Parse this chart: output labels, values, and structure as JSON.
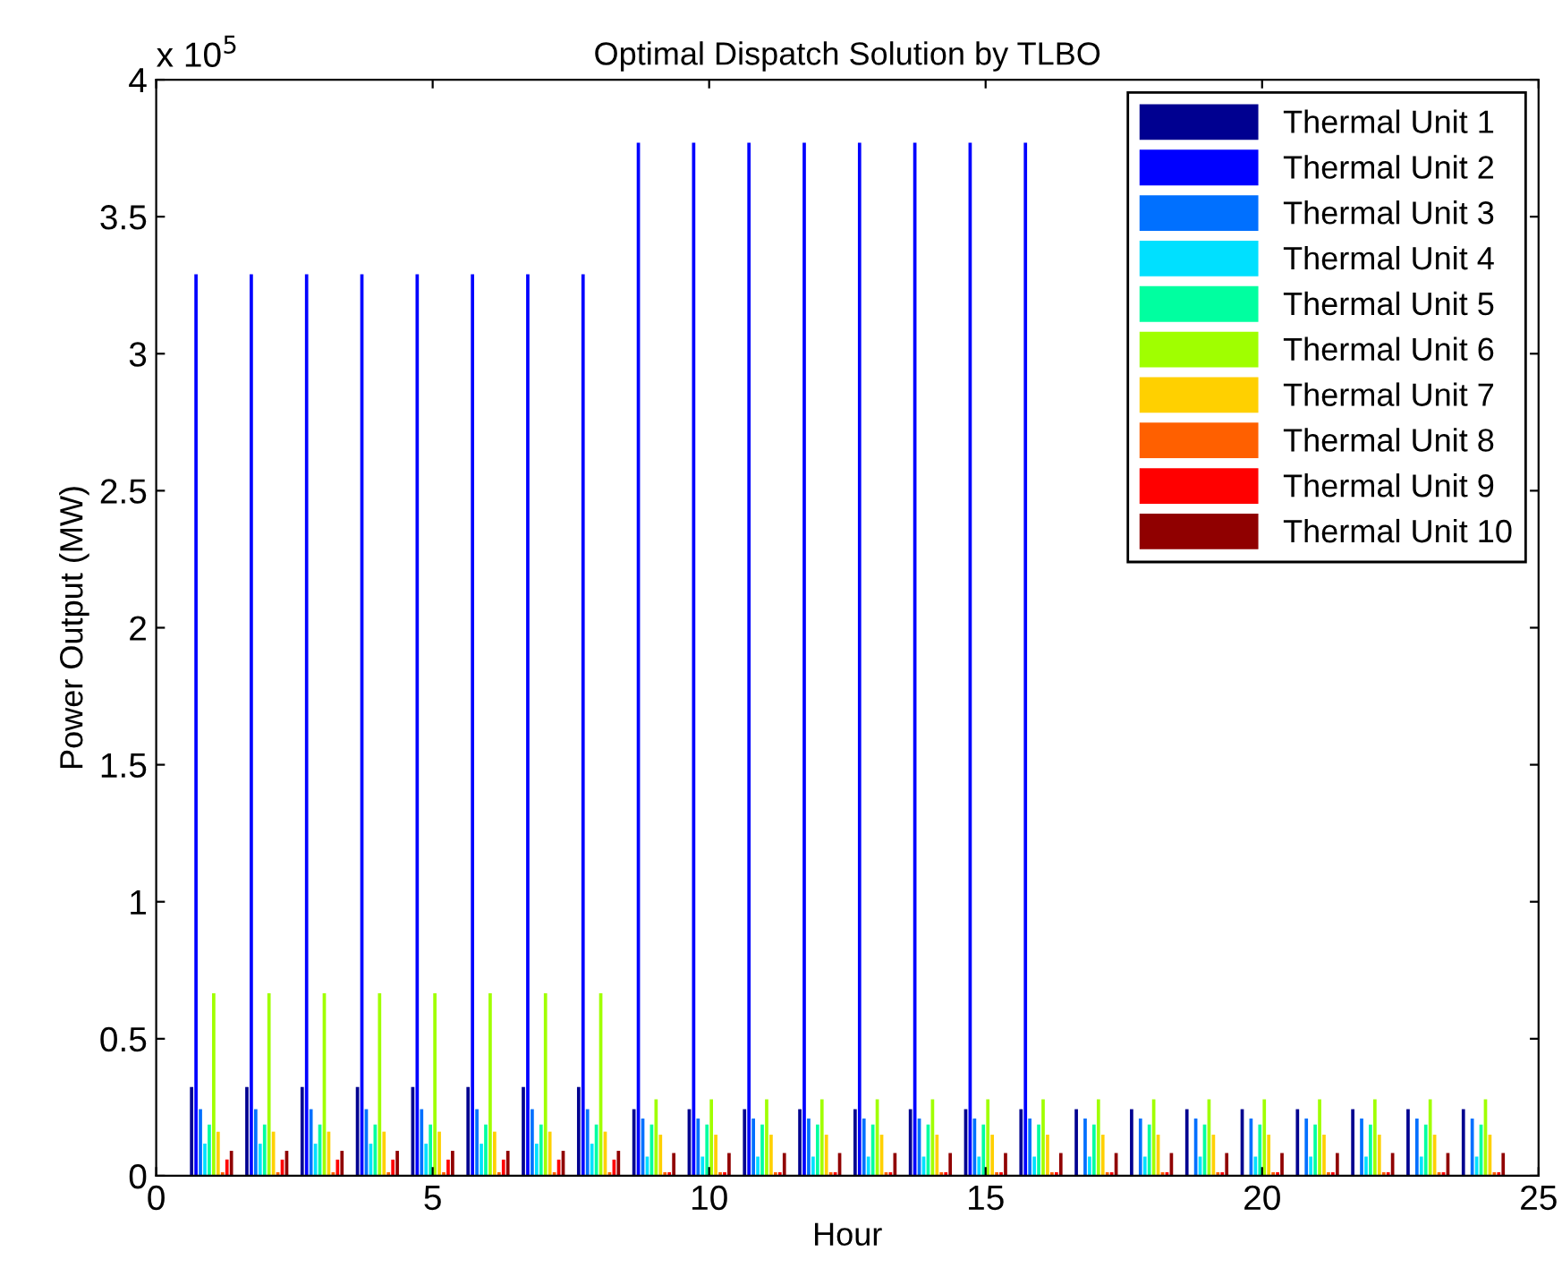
{
  "chart_data": {
    "type": "bar",
    "title": "Optimal Dispatch Solution by TLBO",
    "xlabel": "Hour",
    "ylabel": "Power Output (MW)",
    "annotations": [
      "x 10$^{5}$"
    ],
    "x": [
      1,
      2,
      3,
      4,
      5,
      6,
      7,
      8,
      9,
      10,
      11,
      12,
      13,
      14,
      15,
      16,
      17,
      18,
      19,
      20,
      21,
      22,
      23,
      24
    ],
    "xlim": [
      0,
      25
    ],
    "xticks": [
      0,
      5,
      10,
      15,
      20,
      25
    ],
    "ylim": [
      0,
      4
    ],
    "yticks": [
      0,
      0.5,
      1,
      1.5,
      2,
      2.5,
      3,
      3.5,
      4
    ],
    "grid": false,
    "legend": "top right",
    "series": [
      {
        "name": "Thermal Unit 1",
        "color": "#000090",
        "values": [
          0.324,
          0.324,
          0.324,
          0.324,
          0.324,
          0.324,
          0.324,
          0.324,
          0.243,
          0.243,
          0.243,
          0.243,
          0.243,
          0.243,
          0.243,
          0.243,
          0.243,
          0.243,
          0.243,
          0.243,
          0.243,
          0.243,
          0.243,
          0.243
        ]
      },
      {
        "name": "Thermal Unit 2",
        "color": "#0000ff",
        "values": [
          3.29,
          3.29,
          3.29,
          3.29,
          3.29,
          3.29,
          3.29,
          3.29,
          3.77,
          3.77,
          3.77,
          3.77,
          3.77,
          3.77,
          3.77,
          3.77,
          null,
          null,
          null,
          null,
          null,
          null,
          null,
          null
        ]
      },
      {
        "name": "Thermal Unit 3",
        "color": "#0070ff",
        "values": [
          0.243,
          0.243,
          0.243,
          0.243,
          0.243,
          0.243,
          0.243,
          0.243,
          0.209,
          0.209,
          0.209,
          0.209,
          0.209,
          0.209,
          0.209,
          0.209,
          0.209,
          0.209,
          0.209,
          0.209,
          0.209,
          0.209,
          0.209,
          0.209
        ]
      },
      {
        "name": "Thermal Unit 4",
        "color": "#00e0ff",
        "values": [
          0.117,
          0.117,
          0.117,
          0.117,
          0.117,
          0.117,
          0.117,
          0.117,
          0.07,
          0.07,
          0.07,
          0.07,
          0.07,
          0.07,
          0.07,
          0.07,
          0.07,
          0.07,
          0.07,
          0.07,
          0.07,
          0.07,
          0.07,
          0.07
        ]
      },
      {
        "name": "Thermal Unit 5",
        "color": "#00ffa0",
        "values": [
          0.187,
          0.187,
          0.187,
          0.187,
          0.187,
          0.187,
          0.187,
          0.187,
          0.187,
          0.187,
          0.187,
          0.187,
          0.187,
          0.187,
          0.187,
          0.187,
          0.187,
          0.187,
          0.187,
          0.187,
          0.187,
          0.187,
          0.187,
          0.187
        ]
      },
      {
        "name": "Thermal Unit 6",
        "color": "#a0ff00",
        "values": [
          0.666,
          0.666,
          0.666,
          0.666,
          0.666,
          0.666,
          0.666,
          0.666,
          0.279,
          0.279,
          0.279,
          0.279,
          0.279,
          0.279,
          0.279,
          0.279,
          0.279,
          0.279,
          0.279,
          0.279,
          0.279,
          0.279,
          0.279,
          0.279
        ]
      },
      {
        "name": "Thermal Unit 7",
        "color": "#ffd000",
        "values": [
          0.161,
          0.161,
          0.161,
          0.161,
          0.161,
          0.161,
          0.161,
          0.161,
          0.15,
          0.15,
          0.15,
          0.15,
          0.15,
          0.15,
          0.15,
          0.15,
          0.15,
          0.15,
          0.15,
          0.15,
          0.15,
          0.15,
          0.15,
          0.15
        ]
      },
      {
        "name": "Thermal Unit 8",
        "color": "#ff6000",
        "values": [
          0.013,
          0.013,
          0.013,
          0.013,
          0.013,
          0.013,
          0.013,
          0.013,
          0.013,
          0.013,
          0.013,
          0.013,
          0.013,
          0.013,
          0.013,
          0.013,
          0.013,
          0.013,
          0.013,
          0.013,
          0.013,
          0.013,
          0.013,
          0.013
        ]
      },
      {
        "name": "Thermal Unit 9",
        "color": "#ff0000",
        "values": [
          0.059,
          0.059,
          0.059,
          0.059,
          0.059,
          0.059,
          0.059,
          0.059,
          0.013,
          0.013,
          0.013,
          0.013,
          0.013,
          0.013,
          0.013,
          0.013,
          0.013,
          0.013,
          0.013,
          0.013,
          0.013,
          0.013,
          0.013,
          0.013
        ]
      },
      {
        "name": "Thermal Unit 10",
        "color": "#900000",
        "values": [
          0.091,
          0.091,
          0.091,
          0.091,
          0.091,
          0.091,
          0.091,
          0.091,
          0.083,
          0.083,
          0.083,
          0.083,
          0.083,
          0.083,
          0.083,
          0.083,
          0.083,
          0.083,
          0.083,
          0.083,
          0.083,
          0.083,
          0.083,
          0.083
        ]
      }
    ]
  }
}
